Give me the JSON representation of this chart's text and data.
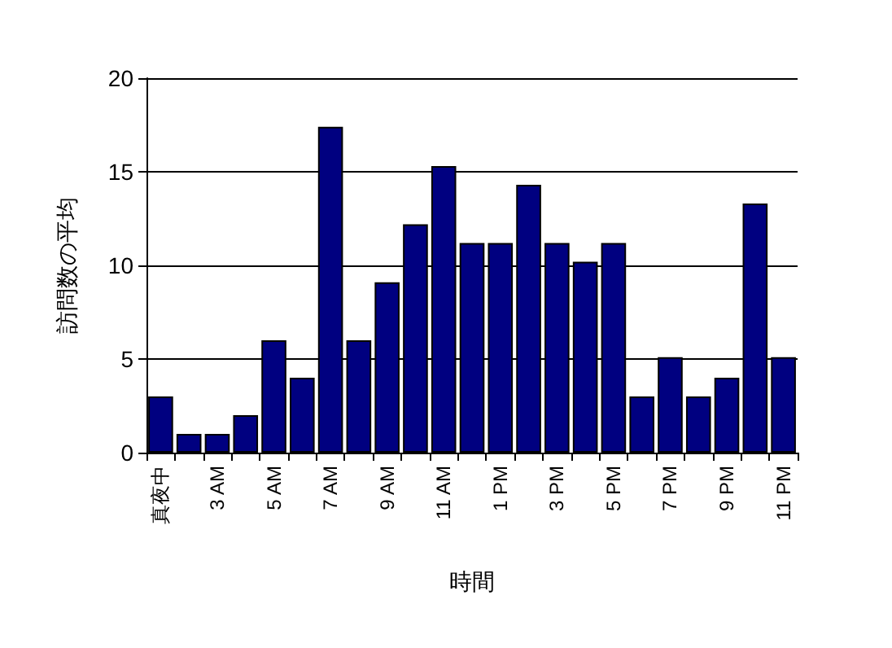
{
  "chart_data": {
    "type": "bar",
    "xlabel": "時間",
    "ylabel": "訪問数の平均",
    "categories": [
      "真夜中",
      null,
      "3 AM",
      null,
      "5 AM",
      null,
      "7 AM",
      null,
      "9 AM",
      null,
      "11 AM",
      null,
      "1 PM",
      null,
      "3 PM",
      null,
      "5 PM",
      null,
      "7 PM",
      null,
      "9 PM",
      null,
      "11 PM"
    ],
    "values": [
      3,
      1,
      1,
      2,
      6,
      4,
      17.4,
      6,
      9.1,
      12.2,
      15.3,
      11.2,
      11.2,
      14.3,
      11.2,
      10.2,
      11.2,
      3,
      5.1,
      3,
      4,
      13.3,
      5.1
    ],
    "color": "#000080",
    "ylim": [
      0,
      20
    ],
    "yticks": [
      0,
      5,
      10,
      15,
      20
    ],
    "grid": "y"
  }
}
